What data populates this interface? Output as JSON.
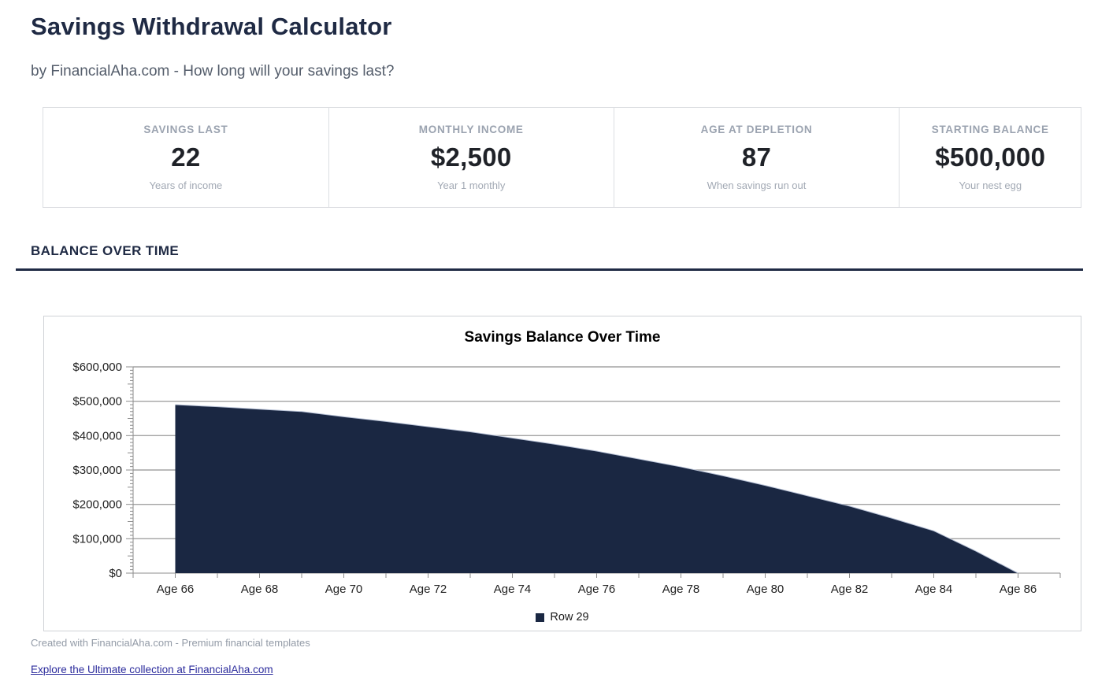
{
  "page": {
    "title": "Savings Withdrawal Calculator",
    "subtitle": "by FinancialAha.com - How long will your savings last?",
    "section_title": "BALANCE OVER TIME",
    "footer_note": "Created with FinancialAha.com - Premium financial templates",
    "footer_link": "Explore the Ultimate collection at FinancialAha.com"
  },
  "stats": [
    {
      "label": "SAVINGS LAST",
      "value": "22",
      "caption": "Years of income"
    },
    {
      "label": "MONTHLY INCOME",
      "value": "$2,500",
      "caption": "Year 1 monthly"
    },
    {
      "label": "AGE AT DEPLETION",
      "value": "87",
      "caption": "When savings run out"
    },
    {
      "label": "STARTING BALANCE",
      "value": "$500,000",
      "caption": "Your nest egg"
    }
  ],
  "colors": {
    "accent": "#1f2a44",
    "area_fill": "#1a2742",
    "area_edge": "#b7c1d6",
    "grid": "#a3a3a3",
    "axis": "#8c8c8c",
    "link": "#2b2b9c"
  },
  "chart_data": {
    "type": "area",
    "title": "Savings Balance Over Time",
    "x": [
      66,
      67,
      68,
      69,
      70,
      71,
      72,
      73,
      74,
      75,
      76,
      77,
      78,
      79,
      80,
      81,
      82,
      83,
      84,
      85,
      86
    ],
    "series": [
      {
        "name": "Row 29",
        "color": "#1a2742",
        "values": [
          490000,
          484000,
          477000,
          470000,
          455000,
          441000,
          426000,
          411000,
          393000,
          375000,
          355000,
          332000,
          309000,
          283000,
          255000,
          225000,
          195000,
          160000,
          123000,
          64000,
          0
        ]
      }
    ],
    "x_axis": {
      "min": 65,
      "max": 87,
      "tick_every": 1,
      "label_prefix": "Age ",
      "labeled": [
        66,
        68,
        70,
        72,
        74,
        76,
        78,
        80,
        82,
        84,
        86
      ]
    },
    "y_axis": {
      "min": 0,
      "max": 600000,
      "major": 100000,
      "medium": 50000,
      "minor": 10000,
      "currency_prefix": "$"
    },
    "grid": true,
    "legend_position": "bottom",
    "legend": [
      "Row 29"
    ]
  }
}
